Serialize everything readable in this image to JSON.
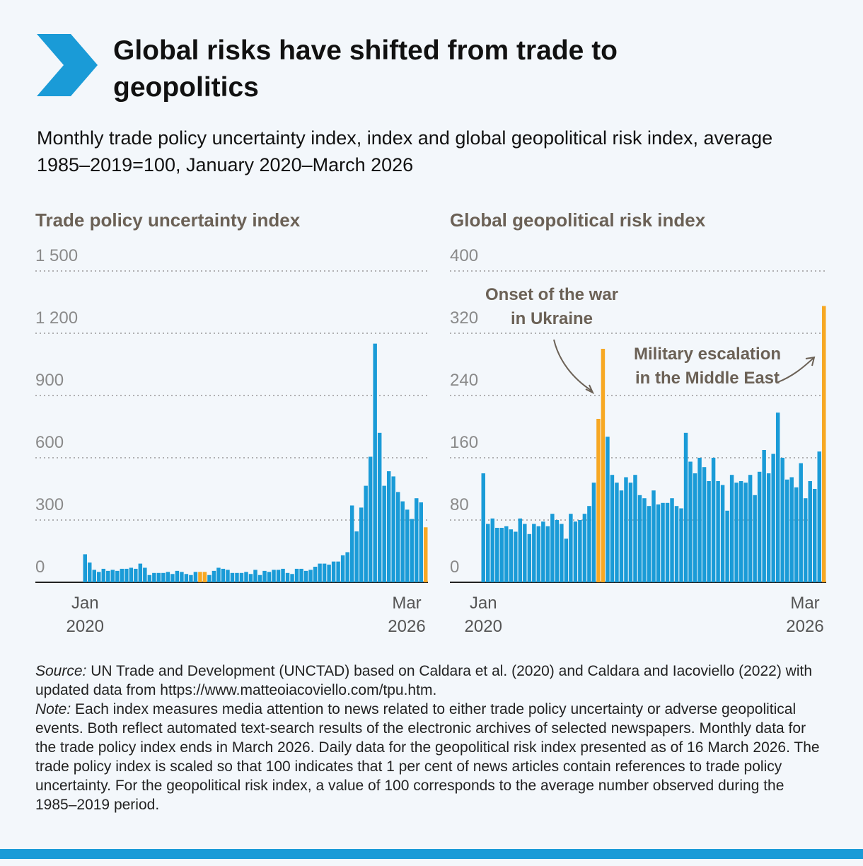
{
  "header": {
    "title": "Global risks have shifted from trade to geopolitics",
    "subtitle": "Monthly trade policy uncertainty index, index and global geopolitical risk index, average 1985–2019=100, January 2020–March 2026"
  },
  "chart_data": [
    {
      "type": "bar",
      "title": "Trade policy uncertainty index",
      "categories": [
        "Jan 2020",
        null,
        null,
        null,
        null,
        null,
        null,
        null,
        null,
        null,
        null,
        null,
        null,
        null,
        null,
        null,
        null,
        null,
        null,
        null,
        null,
        null,
        null,
        null,
        null,
        null,
        null,
        null,
        null,
        null,
        null,
        null,
        null,
        null,
        null,
        null,
        null,
        null,
        null,
        null,
        null,
        null,
        null,
        null,
        null,
        null,
        null,
        null,
        null,
        null,
        null,
        null,
        null,
        null,
        null,
        null,
        null,
        null,
        null,
        null,
        null,
        null,
        null,
        null,
        null,
        null,
        null,
        null,
        null,
        null,
        null,
        null,
        null,
        null,
        "Mar 2026"
      ],
      "values": [
        135,
        95,
        60,
        50,
        65,
        55,
        60,
        55,
        65,
        65,
        70,
        65,
        90,
        70,
        35,
        45,
        45,
        45,
        50,
        40,
        55,
        50,
        40,
        35,
        50,
        50,
        50,
        35,
        55,
        70,
        65,
        60,
        45,
        45,
        45,
        50,
        40,
        60,
        35,
        55,
        50,
        60,
        60,
        65,
        45,
        40,
        65,
        65,
        55,
        60,
        75,
        90,
        90,
        85,
        100,
        100,
        130,
        145,
        370,
        245,
        360,
        465,
        605,
        1150,
        720,
        465,
        535,
        510,
        435,
        390,
        350,
        305,
        405,
        385,
        265
      ],
      "colors": [
        "#1a9bd7",
        "#1a9bd7",
        "#1a9bd7",
        "#1a9bd7",
        "#1a9bd7",
        "#1a9bd7",
        "#1a9bd7",
        "#1a9bd7",
        "#1a9bd7",
        "#1a9bd7",
        "#1a9bd7",
        "#1a9bd7",
        "#1a9bd7",
        "#1a9bd7",
        "#1a9bd7",
        "#1a9bd7",
        "#1a9bd7",
        "#1a9bd7",
        "#1a9bd7",
        "#1a9bd7",
        "#1a9bd7",
        "#1a9bd7",
        "#1a9bd7",
        "#1a9bd7",
        "#1a9bd7",
        "#f7a823",
        "#f7a823",
        "#1a9bd7",
        "#1a9bd7",
        "#1a9bd7",
        "#1a9bd7",
        "#1a9bd7",
        "#1a9bd7",
        "#1a9bd7",
        "#1a9bd7",
        "#1a9bd7",
        "#1a9bd7",
        "#1a9bd7",
        "#1a9bd7",
        "#1a9bd7",
        "#1a9bd7",
        "#1a9bd7",
        "#1a9bd7",
        "#1a9bd7",
        "#1a9bd7",
        "#1a9bd7",
        "#1a9bd7",
        "#1a9bd7",
        "#1a9bd7",
        "#1a9bd7",
        "#1a9bd7",
        "#1a9bd7",
        "#1a9bd7",
        "#1a9bd7",
        "#1a9bd7",
        "#1a9bd7",
        "#1a9bd7",
        "#1a9bd7",
        "#1a9bd7",
        "#1a9bd7",
        "#1a9bd7",
        "#1a9bd7",
        "#1a9bd7",
        "#1a9bd7",
        "#1a9bd7",
        "#1a9bd7",
        "#1a9bd7",
        "#1a9bd7",
        "#1a9bd7",
        "#1a9bd7",
        "#1a9bd7",
        "#1a9bd7",
        "#1a9bd7",
        "#1a9bd7",
        "#f7a823"
      ],
      "ylim": [
        0,
        1500
      ],
      "yticks": [
        0,
        300,
        600,
        900,
        {
          "value": 1200,
          "label": "1 200"
        },
        {
          "value": 1500,
          "label": "1 500"
        }
      ],
      "grid": true
    },
    {
      "type": "bar",
      "title": "Global geopolitical risk index",
      "categories": [
        "Jan 2020",
        null,
        null,
        null,
        null,
        null,
        null,
        null,
        null,
        null,
        null,
        null,
        null,
        null,
        null,
        null,
        null,
        null,
        null,
        null,
        null,
        null,
        null,
        null,
        null,
        null,
        null,
        null,
        null,
        null,
        null,
        null,
        null,
        null,
        null,
        null,
        null,
        null,
        null,
        null,
        null,
        null,
        null,
        null,
        null,
        null,
        null,
        null,
        null,
        null,
        null,
        null,
        null,
        null,
        null,
        null,
        null,
        null,
        null,
        null,
        null,
        null,
        null,
        null,
        null,
        null,
        null,
        null,
        null,
        null,
        null,
        null,
        null,
        null,
        "Mar 2026"
      ],
      "values": [
        140,
        75,
        82,
        70,
        70,
        72,
        68,
        65,
        82,
        75,
        62,
        75,
        72,
        78,
        72,
        88,
        80,
        75,
        56,
        88,
        78,
        80,
        88,
        98,
        128,
        210,
        300,
        187,
        138,
        128,
        118,
        135,
        128,
        138,
        112,
        108,
        98,
        118,
        100,
        102,
        102,
        108,
        98,
        95,
        192,
        155,
        140,
        160,
        148,
        130,
        160,
        130,
        125,
        92,
        138,
        128,
        130,
        128,
        138,
        112,
        142,
        170,
        140,
        165,
        218,
        160,
        132,
        135,
        122,
        153,
        108,
        130,
        120,
        168,
        355
      ],
      "colors": [
        "#1a9bd7",
        "#1a9bd7",
        "#1a9bd7",
        "#1a9bd7",
        "#1a9bd7",
        "#1a9bd7",
        "#1a9bd7",
        "#1a9bd7",
        "#1a9bd7",
        "#1a9bd7",
        "#1a9bd7",
        "#1a9bd7",
        "#1a9bd7",
        "#1a9bd7",
        "#1a9bd7",
        "#1a9bd7",
        "#1a9bd7",
        "#1a9bd7",
        "#1a9bd7",
        "#1a9bd7",
        "#1a9bd7",
        "#1a9bd7",
        "#1a9bd7",
        "#1a9bd7",
        "#1a9bd7",
        "#f7a823",
        "#f7a823",
        "#1a9bd7",
        "#1a9bd7",
        "#1a9bd7",
        "#1a9bd7",
        "#1a9bd7",
        "#1a9bd7",
        "#1a9bd7",
        "#1a9bd7",
        "#1a9bd7",
        "#1a9bd7",
        "#1a9bd7",
        "#1a9bd7",
        "#1a9bd7",
        "#1a9bd7",
        "#1a9bd7",
        "#1a9bd7",
        "#1a9bd7",
        "#1a9bd7",
        "#1a9bd7",
        "#1a9bd7",
        "#1a9bd7",
        "#1a9bd7",
        "#1a9bd7",
        "#1a9bd7",
        "#1a9bd7",
        "#1a9bd7",
        "#1a9bd7",
        "#1a9bd7",
        "#1a9bd7",
        "#1a9bd7",
        "#1a9bd7",
        "#1a9bd7",
        "#1a9bd7",
        "#1a9bd7",
        "#1a9bd7",
        "#1a9bd7",
        "#1a9bd7",
        "#1a9bd7",
        "#1a9bd7",
        "#1a9bd7",
        "#1a9bd7",
        "#1a9bd7",
        "#1a9bd7",
        "#1a9bd7",
        "#1a9bd7",
        "#1a9bd7",
        "#1a9bd7",
        "#f7a823"
      ],
      "ylim": [
        0,
        400
      ],
      "yticks": [
        0,
        80,
        160,
        240,
        320,
        400
      ],
      "grid": true,
      "annotations": [
        "Onset of the war in Ukraine",
        "Military escalation in the Middle East"
      ]
    }
  ],
  "footer": {
    "source_label": "Source:",
    "source": "UN Trade and Development (UNCTAD) based on Caldara et al. (2020) and Caldara and Iacoviello (2022) with updated data from https://www.matteoiacoviello.com/tpu.htm.",
    "note_label": "Note:",
    "note": "Each index measures media attention to news related to either trade policy uncertainty or adverse geopolitical events. Both reflect automated text-search results of the electronic archives of selected newspapers. Monthly data for the trade policy index ends in March 2026. Daily data for the geopolitical risk index presented as of 16 March 2026. The trade policy index is scaled so that 100 indicates that 1 per cent of news articles contain references to trade policy uncertainty. For the geopolitical risk index, a value of 100 corresponds to the average number observed during the 1985–2019 period."
  }
}
